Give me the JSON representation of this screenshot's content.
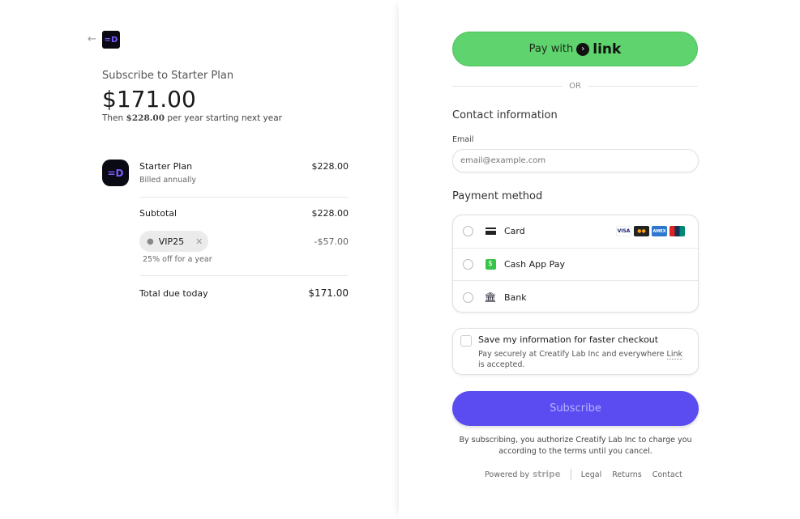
{
  "summary": {
    "back_icon": "arrow-left-icon",
    "subscribe_title": "Subscribe to Starter Plan",
    "price": "$171.00",
    "then_prefix": "Then ",
    "then_amount": "$228.00",
    "then_suffix": " per year starting next year",
    "item": {
      "name": "Starter Plan",
      "billing": "Billed annually",
      "amount": "$228.00"
    },
    "subtotal_label": "Subtotal",
    "subtotal": "$228.00",
    "promo": {
      "code": "VIP25",
      "description": "25% off for a year",
      "discount": "-$57.00"
    },
    "total_label": "Total due today",
    "total": "$171.00"
  },
  "payment": {
    "link_button_prefix": "Pay with",
    "link_brand": "link",
    "or": "OR",
    "contact_heading": "Contact information",
    "email_label": "Email",
    "email_placeholder": "email@example.com",
    "method_heading": "Payment method",
    "methods": [
      {
        "label": "Card",
        "icon": "card-icon"
      },
      {
        "label": "Cash App Pay",
        "icon": "cash-app-icon"
      },
      {
        "label": "Bank",
        "icon": "bank-icon"
      }
    ],
    "card_brands": [
      "VISA",
      "MC",
      "AMEX",
      "UP"
    ],
    "save_title": "Save my information for faster checkout",
    "save_desc_prefix": "Pay securely at Creatify Lab Inc and everywhere ",
    "save_desc_link": "Link",
    "save_desc_suffix": " is accepted.",
    "subscribe_label": "Subscribe",
    "terms": "By subscribing, you authorize Creatify Lab Inc to charge you according to the terms until you cancel.",
    "powered_by": "Powered by",
    "stripe": "stripe",
    "footer_links": [
      "Legal",
      "Returns",
      "Contact"
    ]
  },
  "colors": {
    "link_green": "#5fd36d",
    "subscribe": "#5a4cf0"
  }
}
